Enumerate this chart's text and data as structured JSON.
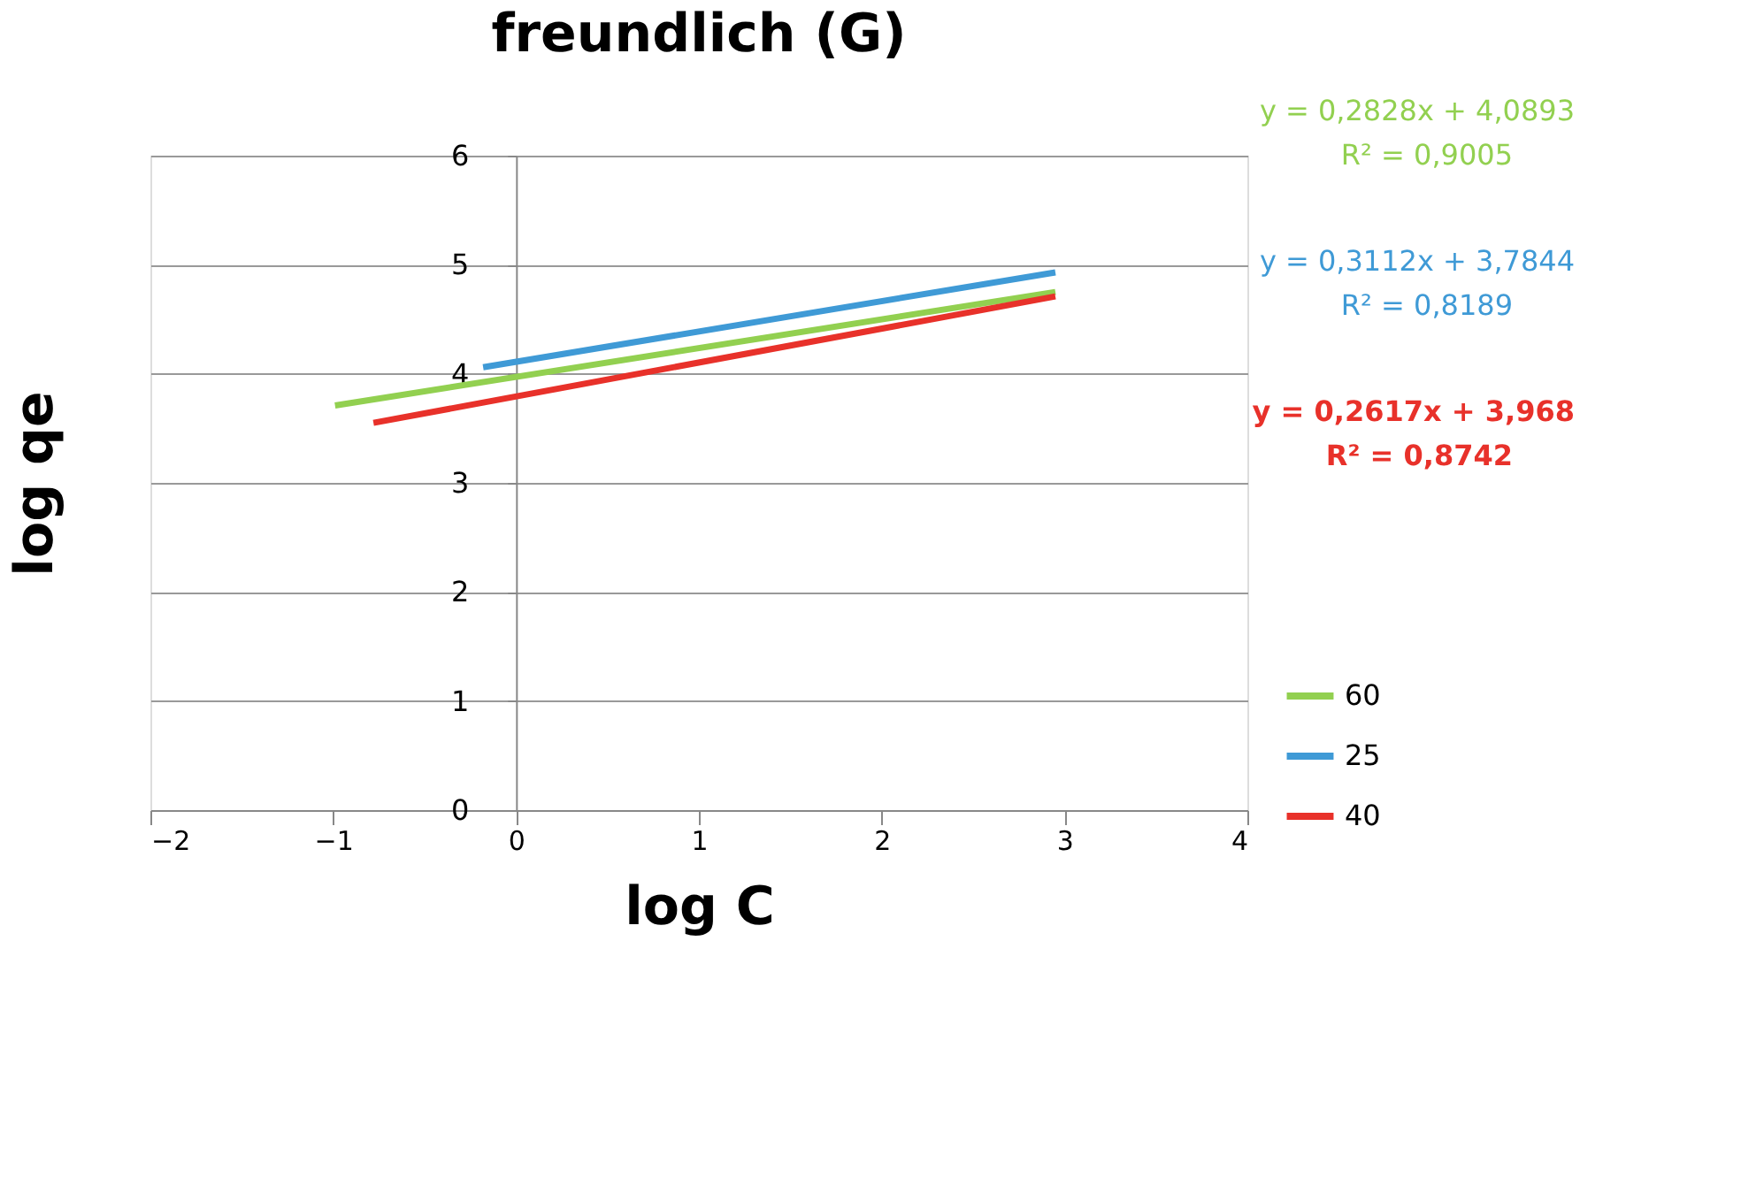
{
  "chart_data": {
    "type": "line",
    "title": "freundlich (G)",
    "xlabel": "log C",
    "ylabel": "log qe",
    "xlim": [
      -2,
      4
    ],
    "xticks": [
      -2,
      -1,
      0,
      1,
      2,
      3,
      4
    ],
    "ylim": [
      0,
      6
    ],
    "yticks": [
      0,
      1,
      2,
      3,
      4,
      5,
      6
    ],
    "grid": "y",
    "legend": "bottom right",
    "marker": "none",
    "line_style": "solid",
    "series": [
      {
        "name": "60",
        "color": "#92d050",
        "x": [
          -0.99,
          2.95
        ],
        "values": [
          3.71,
          4.75
        ]
      },
      {
        "name": "25",
        "color": "#3f9ad6",
        "x": [
          -0.18,
          2.95
        ],
        "values": [
          4.06,
          4.93
        ]
      },
      {
        "name": "40",
        "color": "#e8312a",
        "x": [
          -0.78,
          2.95
        ],
        "values": [
          3.55,
          4.71
        ]
      }
    ],
    "annotations": [
      "y = 0,2828x + 4,0893",
      "R² = 0,9005",
      "y = 0,3112x + 3,7844",
      "R² = 0,8189",
      "y = 0,2617x + 3,968",
      "R² = 0,8742"
    ]
  }
}
